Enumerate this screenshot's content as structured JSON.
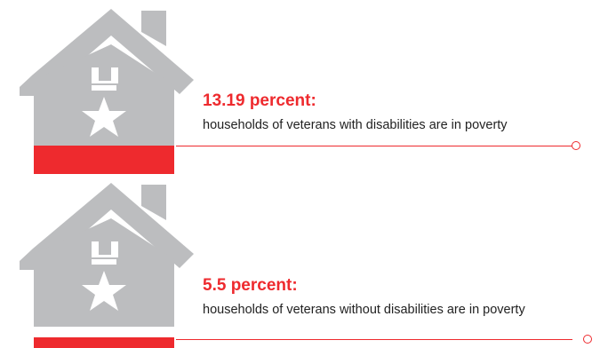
{
  "colors": {
    "accent": "#ee2a2e",
    "house": "#bcbdbf",
    "medal": "#ffffff",
    "text": "#222222"
  },
  "stats": [
    {
      "value": "13.19 percent:",
      "caption": "households of veterans with disabilities are in poverty",
      "icon": "house-medal-icon"
    },
    {
      "value": "5.5 percent:",
      "caption": "households of veterans without disabilities are in poverty",
      "icon": "house-medal-icon"
    }
  ]
}
